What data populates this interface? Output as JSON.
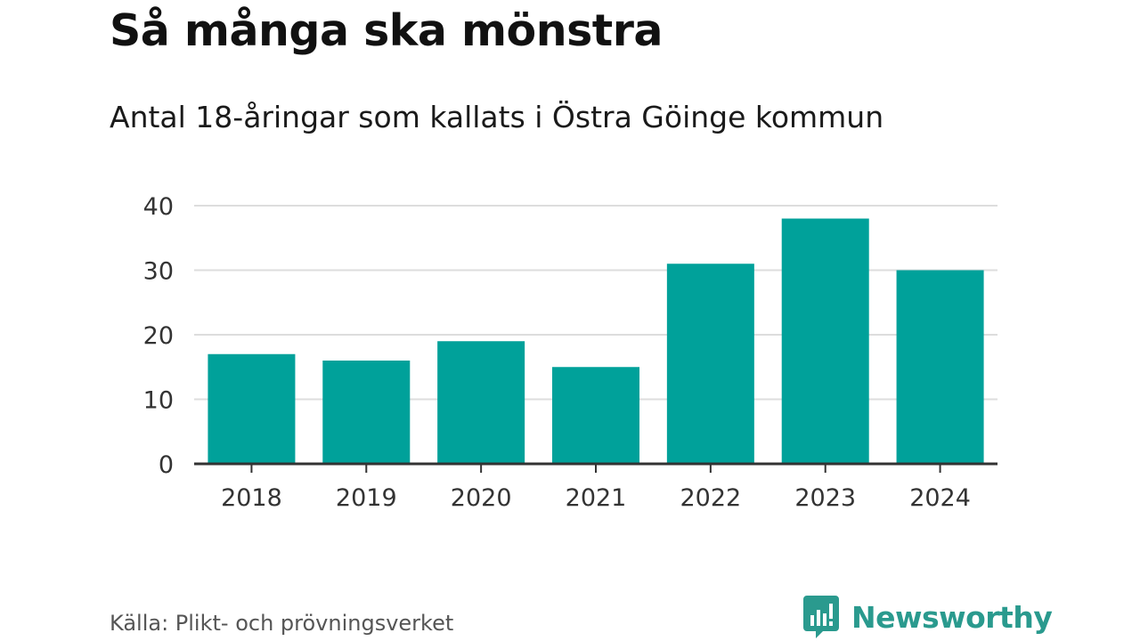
{
  "chart_data": {
    "type": "bar",
    "title": "Så många ska mönstra",
    "subtitle": "Antal 18-åringar som kallats i Östra Göinge kommun",
    "categories": [
      "2018",
      "2019",
      "2020",
      "2021",
      "2022",
      "2023",
      "2024"
    ],
    "values": [
      17,
      16,
      19,
      15,
      31,
      38,
      30
    ],
    "ylim": [
      0,
      40
    ],
    "yticks": [
      0,
      10,
      20,
      30,
      40
    ],
    "grid": true,
    "bar_color": "#00a19a"
  },
  "footer": {
    "source": "Källa: Plikt- och prövningsverket",
    "brand": "Newsworthy",
    "brand_color": "#2a9a8e"
  }
}
